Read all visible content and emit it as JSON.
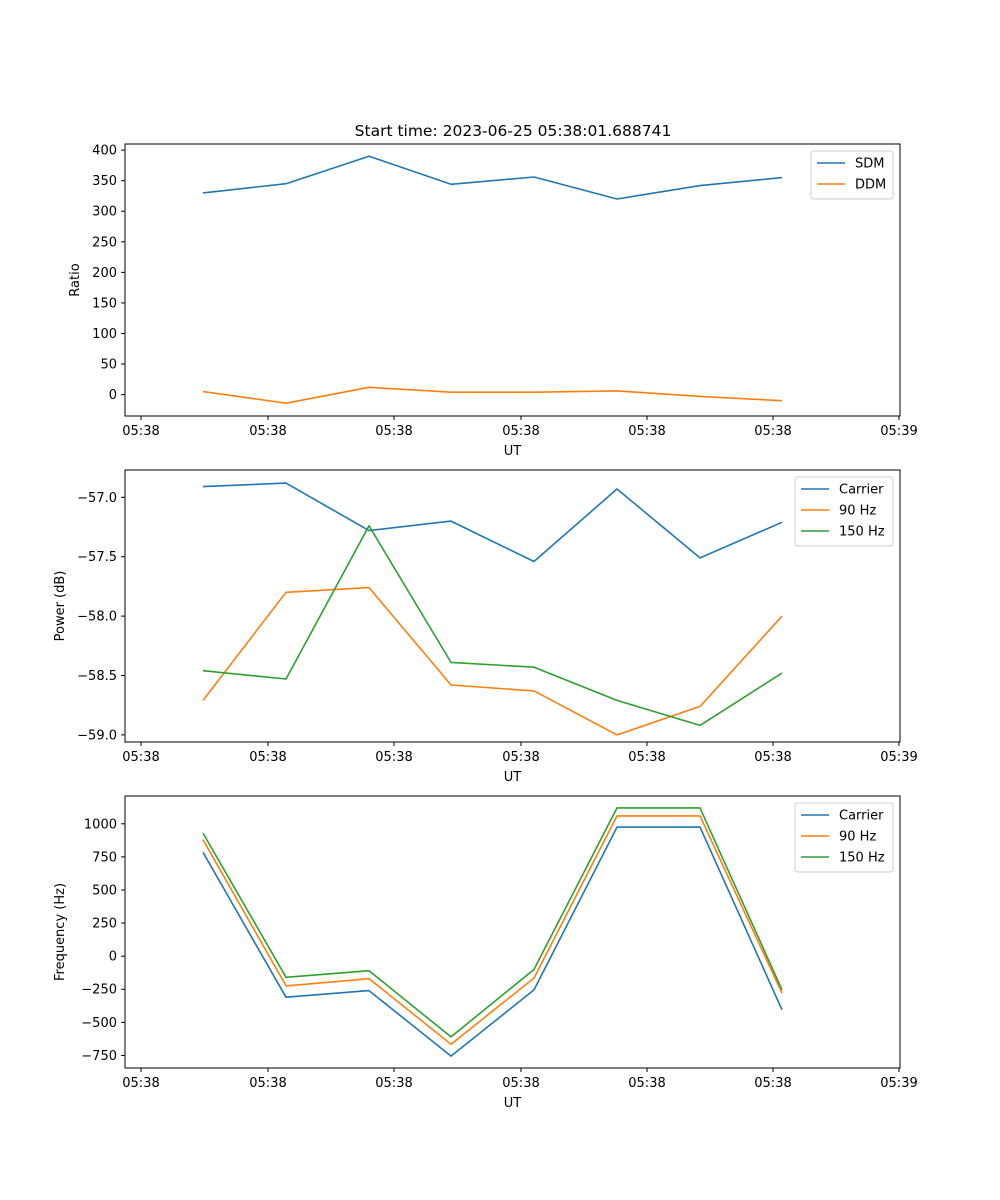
{
  "title": "Start time: 2023-06-25 05:38:01.688741",
  "colors": {
    "blue": "#1f77b4",
    "orange": "#ff7f0e",
    "green": "#2ca02c"
  },
  "x_tick_labels": [
    "05:38",
    "05:38",
    "05:38",
    "05:38",
    "05:38",
    "05:38",
    "05:39"
  ],
  "chart_data": [
    {
      "type": "line",
      "xlabel": "UT",
      "ylabel": "Ratio",
      "ylim": [
        -35,
        410
      ],
      "yticks": [
        0,
        50,
        100,
        150,
        200,
        250,
        300,
        350,
        400
      ],
      "ytick_labels": [
        "0",
        "50",
        "100",
        "150",
        "200",
        "250",
        "300",
        "350",
        "400"
      ],
      "legend": "top-right",
      "series": [
        {
          "name": "SDM",
          "color": "blue",
          "values": [
            330,
            345,
            390,
            344,
            356,
            320,
            342,
            355
          ]
        },
        {
          "name": "DDM",
          "color": "orange",
          "values": [
            5,
            -14,
            12,
            4,
            4,
            6,
            -3,
            -10
          ]
        }
      ]
    },
    {
      "type": "line",
      "xlabel": "UT",
      "ylabel": "Power (dB)",
      "ylim": [
        -59.06,
        -56.77
      ],
      "yticks": [
        -57.0,
        -57.5,
        -58.0,
        -58.5,
        -59.0
      ],
      "ytick_labels": [
        "−57.0",
        "−57.5",
        "−58.0",
        "−58.5",
        "−59.0"
      ],
      "legend": "top-right",
      "series": [
        {
          "name": "Carrier",
          "color": "blue",
          "values": [
            -56.91,
            -56.88,
            -57.28,
            -57.2,
            -57.54,
            -56.93,
            -57.51,
            -57.21
          ]
        },
        {
          "name": "90 Hz",
          "color": "orange",
          "values": [
            -58.71,
            -57.8,
            -57.76,
            -58.58,
            -58.63,
            -59.0,
            -58.76,
            -58.0
          ]
        },
        {
          "name": "150 Hz",
          "color": "green",
          "values": [
            -58.46,
            -58.53,
            -57.24,
            -58.39,
            -58.43,
            -58.71,
            -58.92,
            -58.48
          ]
        }
      ]
    },
    {
      "type": "line",
      "xlabel": "UT",
      "ylabel": "Frequency (Hz)",
      "ylim": [
        -845,
        1210
      ],
      "yticks": [
        -750,
        -500,
        -250,
        0,
        250,
        500,
        750,
        1000
      ],
      "ytick_labels": [
        "−750",
        "−500",
        "−250",
        "0",
        "250",
        "500",
        "750",
        "1000"
      ],
      "legend": "top-right",
      "series": [
        {
          "name": "Carrier",
          "color": "blue",
          "values": [
            785,
            -310,
            -260,
            -755,
            -255,
            975,
            975,
            -405
          ]
        },
        {
          "name": "90 Hz",
          "color": "orange",
          "values": [
            880,
            -225,
            -170,
            -665,
            -165,
            1060,
            1060,
            -280
          ]
        },
        {
          "name": "150 Hz",
          "color": "green",
          "values": [
            930,
            -160,
            -110,
            -610,
            -100,
            1120,
            1120,
            -255
          ]
        }
      ]
    }
  ]
}
